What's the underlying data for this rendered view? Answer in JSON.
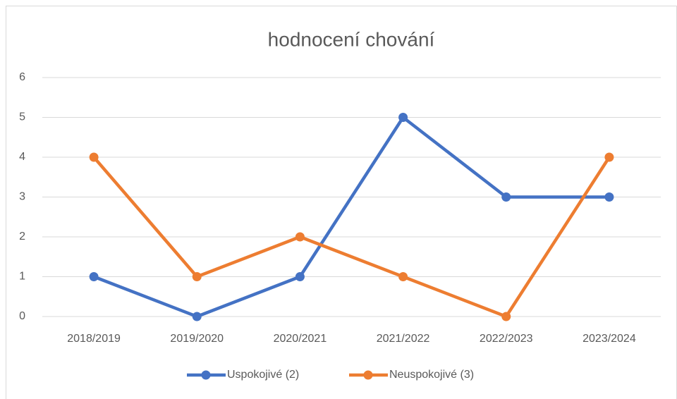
{
  "chart_data": {
    "type": "line",
    "title": "hodnocení chování",
    "categories": [
      "2018/2019",
      "2019/2020",
      "2020/2021",
      "2021/2022",
      "2022/2023",
      "2023/2024"
    ],
    "series": [
      {
        "name": "Uspokojivé (2)",
        "color": "#4472c4",
        "values": [
          1,
          0,
          1,
          5,
          3,
          3
        ]
      },
      {
        "name": "Neuspokojivé (3)",
        "color": "#ed7d31",
        "values": [
          4,
          1,
          2,
          1,
          0,
          4
        ]
      }
    ],
    "ylim": [
      0,
      6
    ],
    "yticks": [
      0,
      1,
      2,
      3,
      4,
      5,
      6
    ],
    "grid": true,
    "legend": "bottom"
  }
}
